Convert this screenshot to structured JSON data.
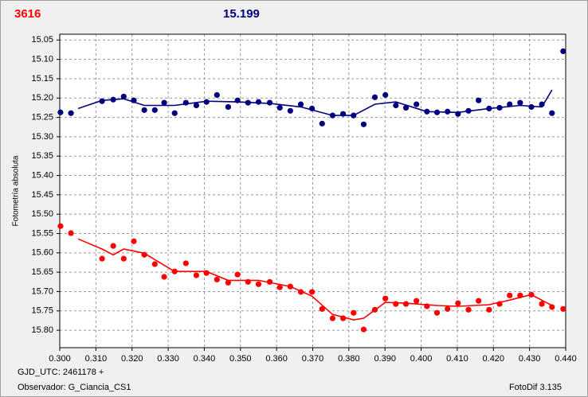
{
  "chart_data": {
    "type": "scatter",
    "title": "3616",
    "title_color": "#ff0000",
    "subtitle": "15.199",
    "subtitle_color": "#00007f",
    "y_label": "Fotometría absoluta",
    "annotations": [
      "GJD_UTC: 2461178 +",
      "Observador: G_Ciancia_CS1",
      "FotoDif 3.135"
    ],
    "xlim": [
      0.3,
      0.44
    ],
    "xticks": [
      {
        "value": 0.3,
        "label": "0.300"
      },
      {
        "value": 0.31,
        "label": "0.310"
      },
      {
        "value": 0.32,
        "label": "0.320"
      },
      {
        "value": 0.33,
        "label": "0.330"
      },
      {
        "value": 0.34,
        "label": "0.340"
      },
      {
        "value": 0.35,
        "label": "0.350"
      },
      {
        "value": 0.36,
        "label": "0.360"
      },
      {
        "value": 0.37,
        "label": "0.370"
      },
      {
        "value": 0.38,
        "label": "0.380"
      },
      {
        "value": 0.39,
        "label": "0.390"
      },
      {
        "value": 0.4,
        "label": "0.400"
      },
      {
        "value": 0.41,
        "label": "0.410"
      },
      {
        "value": 0.42,
        "label": "0.420"
      },
      {
        "value": 0.43,
        "label": "0.430"
      },
      {
        "value": 0.44,
        "label": "0.440"
      }
    ],
    "ylim": [
      15.035,
      15.845
    ],
    "y_inverted": true,
    "yticks": [
      15.05,
      {
        "value": 15.1,
        "label": "15.10"
      },
      15.15,
      {
        "value": 15.2,
        "label": "15.20"
      },
      15.25,
      {
        "value": 15.3,
        "label": "15.30"
      },
      15.35,
      {
        "value": 15.4,
        "label": "15.40"
      },
      15.45,
      {
        "value": 15.5,
        "label": "15.50"
      },
      15.55,
      {
        "value": 15.6,
        "label": "15.60"
      },
      15.65,
      {
        "value": 15.7,
        "label": "15.70"
      },
      15.75,
      {
        "value": 15.8,
        "label": "15.80"
      }
    ],
    "grid": true,
    "series": [
      {
        "mode": "points",
        "color": "#00007f",
        "x": [
          0.3002,
          0.3031,
          0.3117,
          0.3148,
          0.3177,
          0.3205,
          0.3234,
          0.3263,
          0.3289,
          0.3318,
          0.3349,
          0.3378,
          0.3406,
          0.3435,
          0.3466,
          0.3492,
          0.3521,
          0.355,
          0.3581,
          0.3609,
          0.3638,
          0.3667,
          0.3698,
          0.3726,
          0.3755,
          0.3784,
          0.3813,
          0.3841,
          0.3872,
          0.3901,
          0.393,
          0.3958,
          0.3987,
          0.4016,
          0.4044,
          0.4073,
          0.4102,
          0.4131,
          0.4159,
          0.4188,
          0.4217,
          0.4245,
          0.4274,
          0.4305,
          0.4334,
          0.4362,
          0.4393
        ],
        "values": [
          15.237,
          15.239,
          15.208,
          15.204,
          15.196,
          15.206,
          15.231,
          15.231,
          15.212,
          15.239,
          15.212,
          15.219,
          15.21,
          15.192,
          15.223,
          15.206,
          15.212,
          15.21,
          15.212,
          15.225,
          15.233,
          15.216,
          15.227,
          15.266,
          15.245,
          15.241,
          15.245,
          15.268,
          15.198,
          15.192,
          15.219,
          15.225,
          15.216,
          15.235,
          15.237,
          15.235,
          15.241,
          15.233,
          15.206,
          15.227,
          15.225,
          15.216,
          15.212,
          15.223,
          15.216,
          15.239,
          15.079
        ]
      },
      {
        "mode": "line",
        "color": "#00007f",
        "x": [
          0.3051,
          0.3117,
          0.3177,
          0.3234,
          0.3318,
          0.3406,
          0.3492,
          0.3583,
          0.3667,
          0.3755,
          0.3813,
          0.3872,
          0.393,
          0.4016,
          0.4102,
          0.4188,
          0.4274,
          0.4334,
          0.4362
        ],
        "values": [
          15.227,
          15.206,
          15.202,
          15.219,
          15.219,
          15.208,
          15.21,
          15.214,
          15.223,
          15.245,
          15.245,
          15.216,
          15.21,
          15.235,
          15.237,
          15.227,
          15.219,
          15.223,
          15.179
        ]
      },
      {
        "mode": "points",
        "color": "#ff0000",
        "x": [
          0.3002,
          0.3031,
          0.3117,
          0.3148,
          0.3177,
          0.3205,
          0.3234,
          0.3263,
          0.3289,
          0.3318,
          0.3349,
          0.3378,
          0.3406,
          0.3435,
          0.3466,
          0.3492,
          0.3521,
          0.355,
          0.3581,
          0.3609,
          0.3638,
          0.3667,
          0.3698,
          0.3726,
          0.3755,
          0.3784,
          0.3813,
          0.3841,
          0.3872,
          0.3901,
          0.393,
          0.3958,
          0.3987,
          0.4016,
          0.4044,
          0.4073,
          0.4102,
          0.4131,
          0.4159,
          0.4188,
          0.4217,
          0.4245,
          0.4274,
          0.4305,
          0.4334,
          0.4362,
          0.4393
        ],
        "values": [
          15.531,
          15.549,
          15.615,
          15.582,
          15.615,
          15.57,
          15.605,
          15.629,
          15.662,
          15.648,
          15.627,
          15.658,
          15.652,
          15.669,
          15.677,
          15.656,
          15.675,
          15.681,
          15.675,
          15.689,
          15.687,
          15.701,
          15.701,
          15.745,
          15.769,
          15.769,
          15.755,
          15.798,
          15.747,
          15.718,
          15.732,
          15.732,
          15.724,
          15.738,
          15.755,
          15.745,
          15.73,
          15.747,
          15.724,
          15.747,
          15.732,
          15.71,
          15.71,
          15.708,
          15.732,
          15.74,
          15.745
        ]
      },
      {
        "mode": "line",
        "color": "#ff0000",
        "x": [
          0.3051,
          0.3117,
          0.3148,
          0.3177,
          0.3234,
          0.3289,
          0.3318,
          0.3406,
          0.3466,
          0.355,
          0.3638,
          0.3698,
          0.3755,
          0.3813,
          0.3841,
          0.3901,
          0.3958,
          0.4044,
          0.4102,
          0.4188,
          0.4245,
          0.4305,
          0.4362
        ],
        "values": [
          15.564,
          15.59,
          15.605,
          15.59,
          15.601,
          15.632,
          15.648,
          15.648,
          15.671,
          15.671,
          15.687,
          15.712,
          15.759,
          15.773,
          15.769,
          15.728,
          15.73,
          15.736,
          15.738,
          15.734,
          15.722,
          15.708,
          15.736
        ]
      }
    ]
  }
}
